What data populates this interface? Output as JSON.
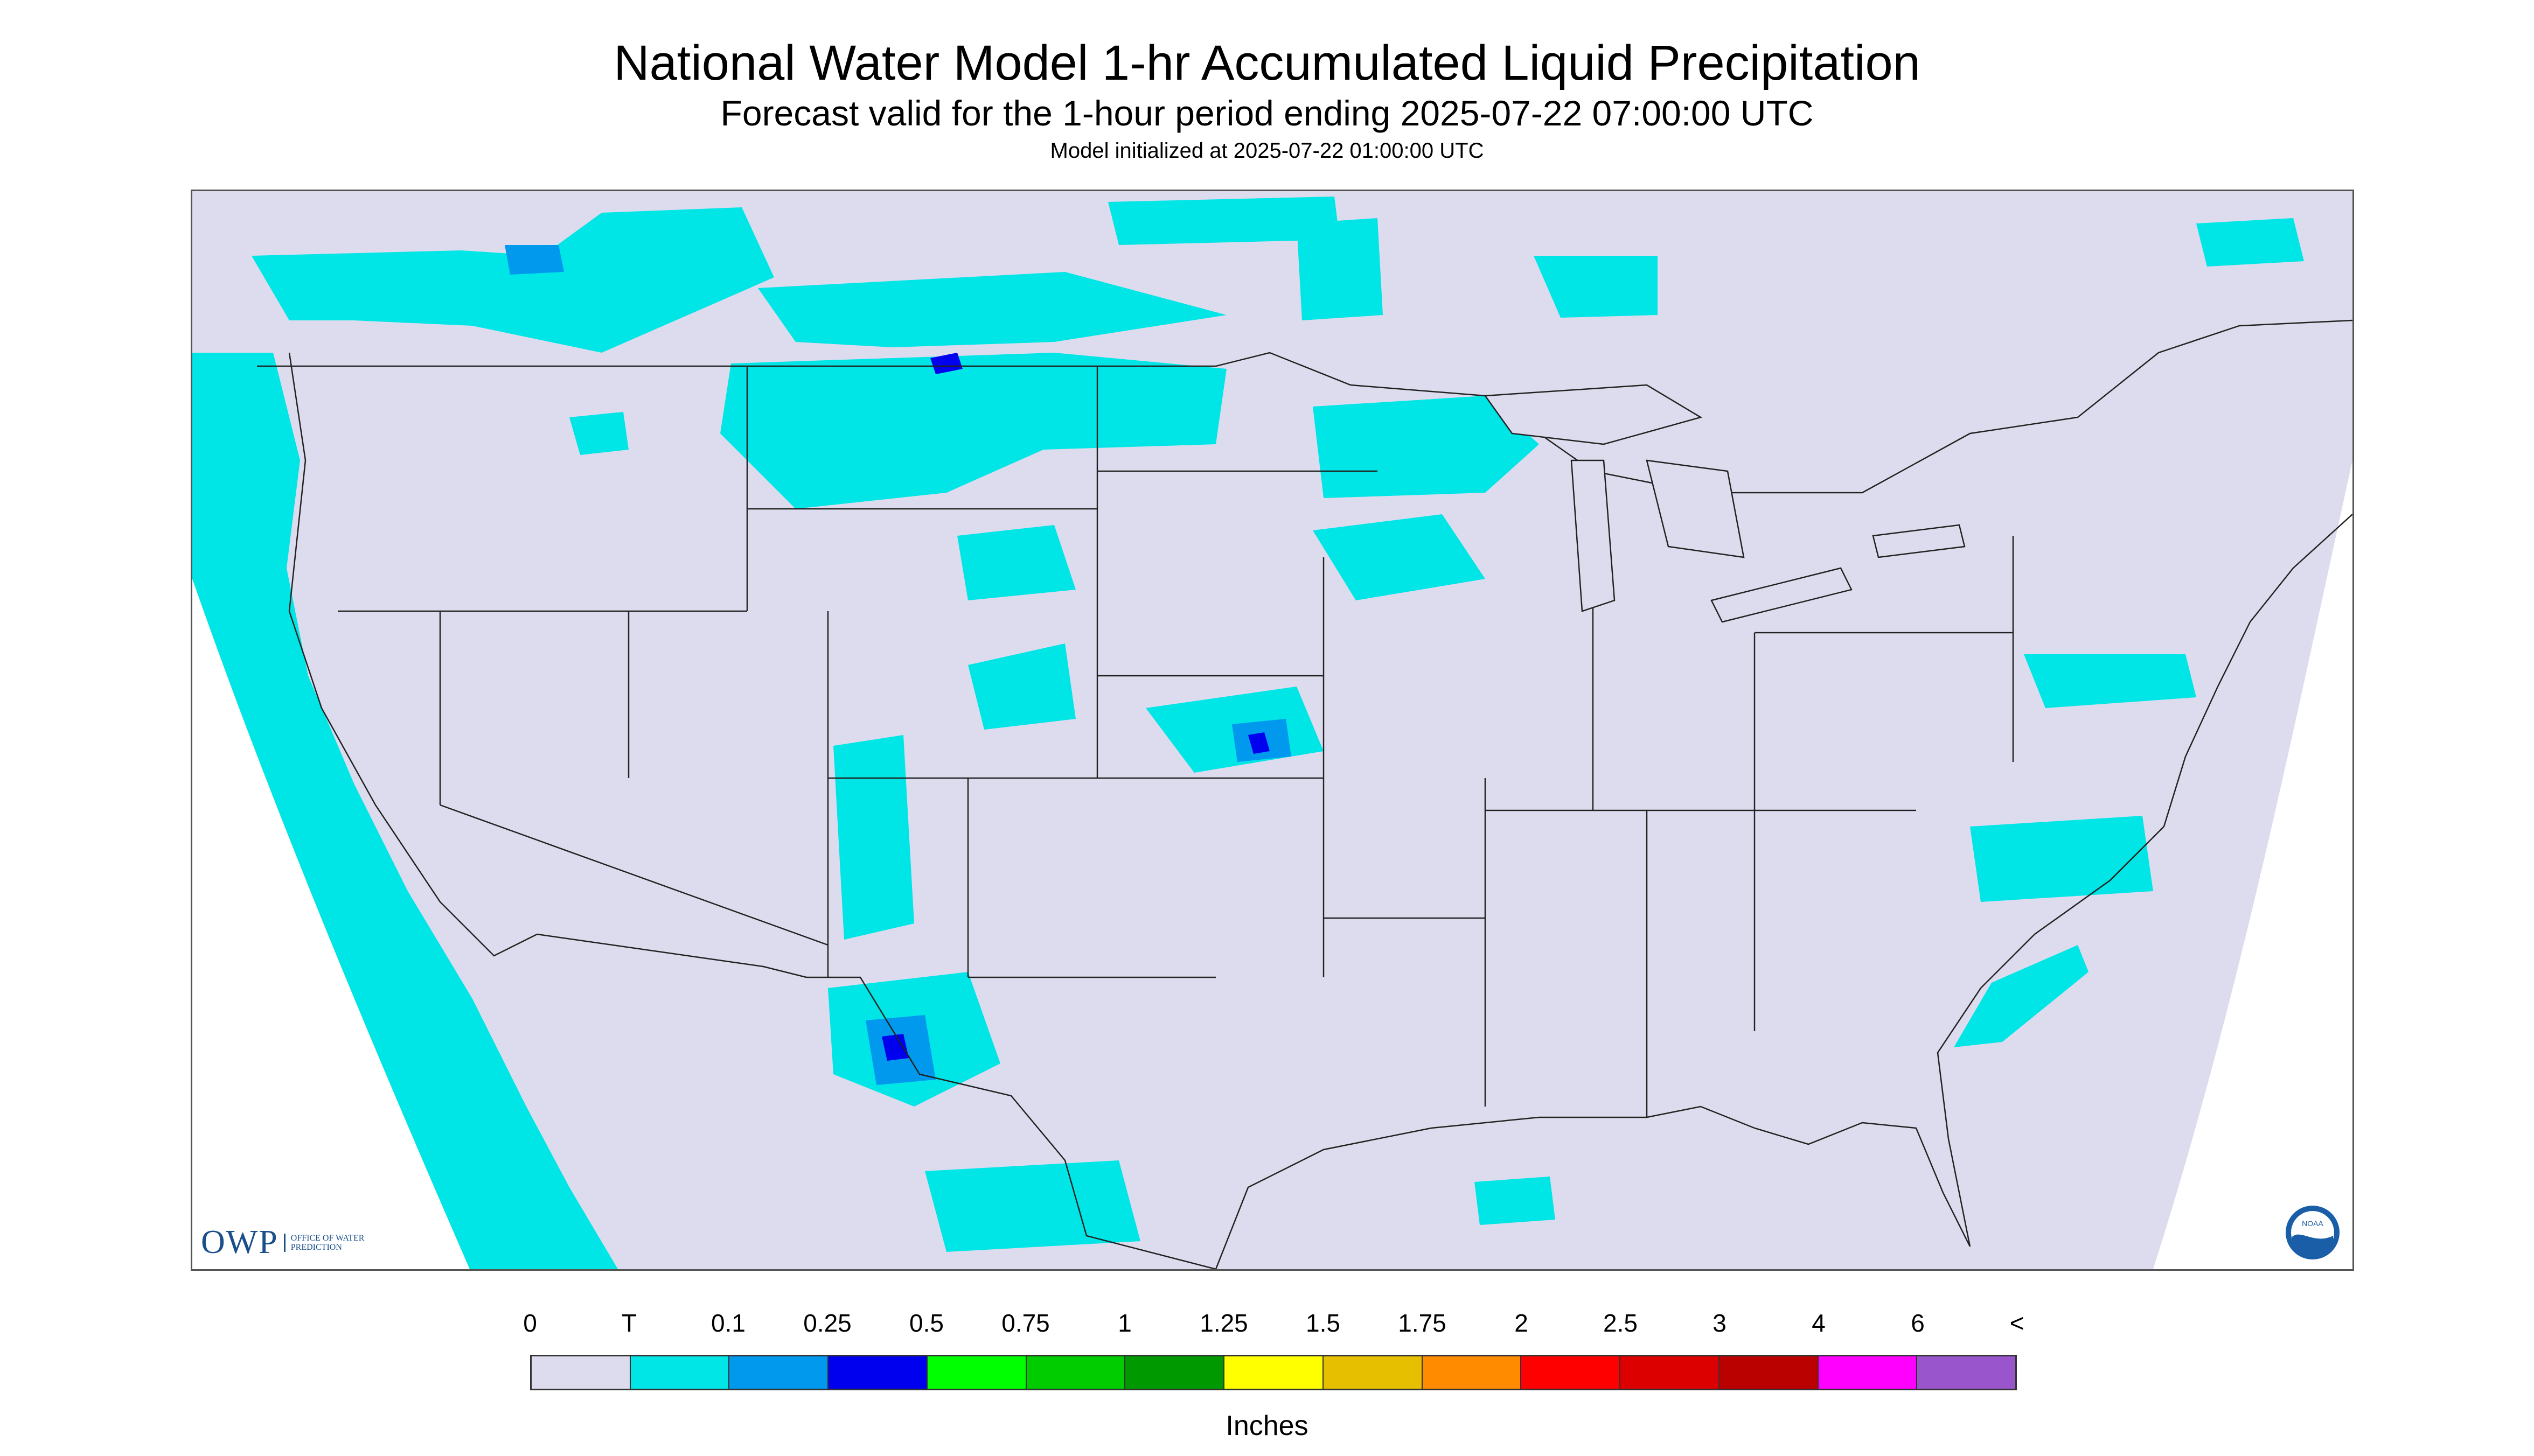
{
  "header": {
    "title": "National Water Model 1-hr Accumulated Liquid Precipitation",
    "subtitle": "Forecast valid for the 1-hour period ending 2025-07-22 07:00:00 UTC",
    "init": "Model initialized at 2025-07-22 01:00:00 UTC"
  },
  "map": {
    "background_color": "#dcdcee",
    "outside_domain_color": "#ffffff",
    "boundary_color": "#222222",
    "precip_light_color": "#00e5e5",
    "precip_moderate_color": "#0099ee",
    "precip_heavy_color": "#0000ee",
    "precip_green_color": "#009900"
  },
  "logos": {
    "owp_mark": "OWP",
    "owp_text": "OFFICE OF WATER PREDICTION",
    "noaa_text": "NOAA"
  },
  "legend": {
    "labels": [
      "0",
      "T",
      "0.1",
      "0.25",
      "0.5",
      "0.75",
      "1",
      "1.25",
      "1.5",
      "1.75",
      "2",
      "2.5",
      "3",
      "4",
      "6",
      "<"
    ],
    "colors": [
      "#dcdcee",
      "#00e5e5",
      "#0099ee",
      "#0000ee",
      "#00ff00",
      "#00cc00",
      "#009900",
      "#ffff00",
      "#e5bf00",
      "#ff8c00",
      "#ff0000",
      "#dd0000",
      "#bb0000",
      "#ff00ff",
      "#9955cc"
    ],
    "units": "Inches"
  }
}
